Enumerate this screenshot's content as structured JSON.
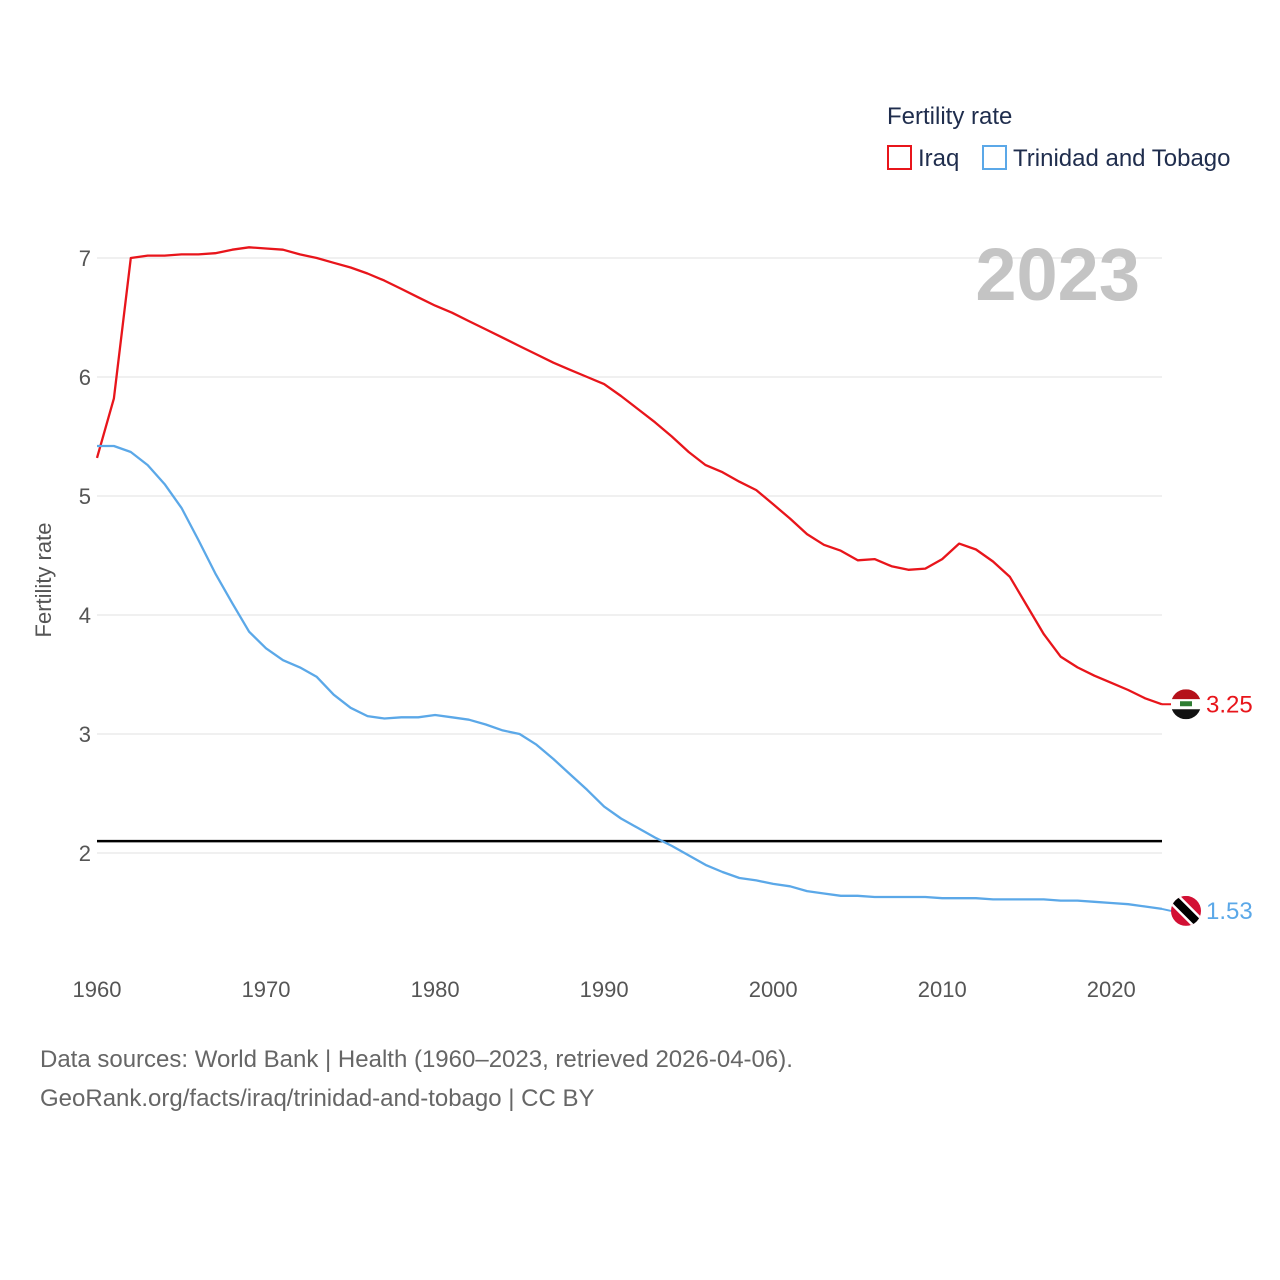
{
  "chart_data": {
    "type": "line",
    "title": "Fertility rate",
    "ylabel": "Fertility rate",
    "xlabel": "",
    "year_label": "2023",
    "xlim": [
      1960,
      2023
    ],
    "ylim": [
      1.2,
      7.5
    ],
    "x_ticks": [
      1960,
      1970,
      1980,
      1990,
      2000,
      2010,
      2020
    ],
    "y_ticks": [
      2,
      3,
      4,
      5,
      6,
      7
    ],
    "x_tick_labels": [
      "1960",
      "1970",
      "1980",
      "1990",
      "2000",
      "2010",
      "2020"
    ],
    "y_tick_labels": [
      "2",
      "3",
      "4",
      "5",
      "6",
      "7"
    ],
    "reference_line": {
      "y": 2.1,
      "color": "#000000"
    },
    "x": [
      1960,
      1961,
      1962,
      1963,
      1964,
      1965,
      1966,
      1967,
      1968,
      1969,
      1970,
      1971,
      1972,
      1973,
      1974,
      1975,
      1976,
      1977,
      1978,
      1979,
      1980,
      1981,
      1982,
      1983,
      1984,
      1985,
      1986,
      1987,
      1988,
      1989,
      1990,
      1991,
      1992,
      1993,
      1994,
      1995,
      1996,
      1997,
      1998,
      1999,
      2000,
      2001,
      2002,
      2003,
      2004,
      2005,
      2006,
      2007,
      2008,
      2009,
      2010,
      2011,
      2012,
      2013,
      2014,
      2015,
      2016,
      2017,
      2018,
      2019,
      2020,
      2021,
      2022,
      2023
    ],
    "series": [
      {
        "name": "Iraq",
        "color": "#e8151b",
        "end_label": "3.25",
        "values": [
          5.32,
          5.82,
          7.0,
          7.02,
          7.02,
          7.03,
          7.03,
          7.04,
          7.07,
          7.09,
          7.08,
          7.07,
          7.03,
          7.0,
          6.96,
          6.92,
          6.87,
          6.81,
          6.74,
          6.67,
          6.6,
          6.54,
          6.47,
          6.4,
          6.33,
          6.26,
          6.19,
          6.12,
          6.06,
          6.0,
          5.94,
          5.84,
          5.73,
          5.62,
          5.5,
          5.37,
          5.26,
          5.2,
          5.12,
          5.05,
          4.93,
          4.81,
          4.68,
          4.59,
          4.54,
          4.46,
          4.47,
          4.41,
          4.38,
          4.39,
          4.47,
          4.6,
          4.55,
          4.45,
          4.32,
          4.08,
          3.84,
          3.65,
          3.56,
          3.49,
          3.43,
          3.37,
          3.3,
          3.25
        ]
      },
      {
        "name": "Trinidad and Tobago",
        "color": "#5ba8e8",
        "end_label": "1.53",
        "values": [
          5.42,
          5.42,
          5.37,
          5.26,
          5.1,
          4.9,
          4.63,
          4.35,
          4.1,
          3.86,
          3.72,
          3.62,
          3.56,
          3.48,
          3.33,
          3.22,
          3.15,
          3.13,
          3.14,
          3.14,
          3.16,
          3.14,
          3.12,
          3.08,
          3.03,
          3.0,
          2.91,
          2.79,
          2.66,
          2.53,
          2.39,
          2.29,
          2.21,
          2.13,
          2.06,
          1.98,
          1.9,
          1.84,
          1.79,
          1.77,
          1.74,
          1.72,
          1.68,
          1.66,
          1.64,
          1.64,
          1.63,
          1.63,
          1.63,
          1.63,
          1.62,
          1.62,
          1.62,
          1.61,
          1.61,
          1.61,
          1.61,
          1.6,
          1.6,
          1.59,
          1.58,
          1.57,
          1.55,
          1.53
        ]
      }
    ],
    "legend": {
      "title": "Fertility rate",
      "position": "top-right"
    }
  },
  "source": {
    "line1": "Data sources: World Bank | Health (1960–2023, retrieved 2026-04-06).",
    "line2": "GeoRank.org/facts/iraq/trinidad-and-tobago | CC BY"
  }
}
